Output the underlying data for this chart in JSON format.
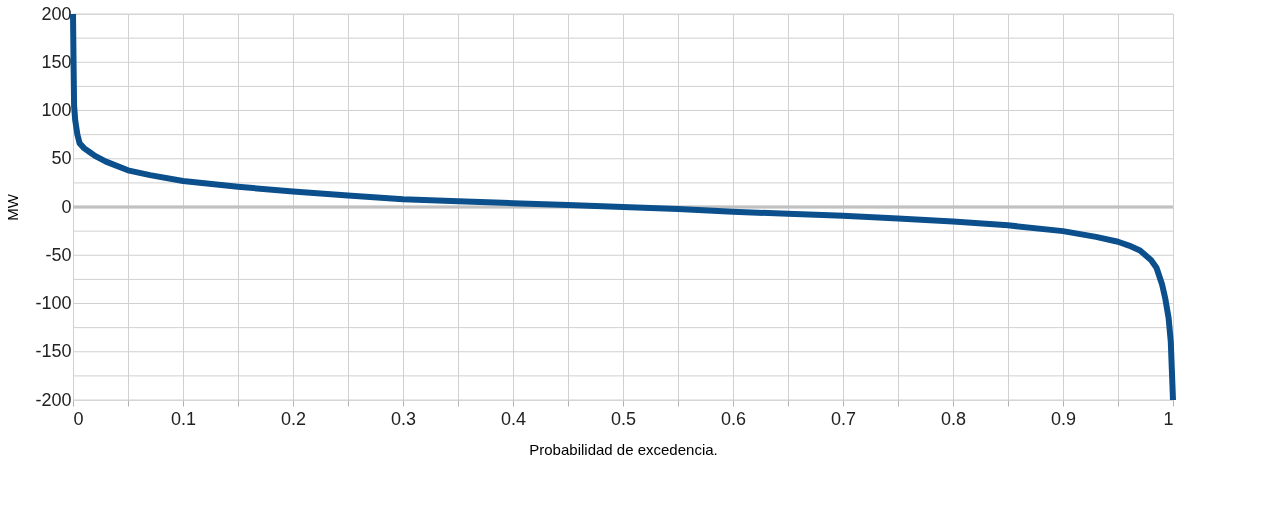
{
  "chart_data": {
    "type": "line",
    "xlabel": "Probabilidad de excedencia.",
    "ylabel": "MW",
    "xlim": [
      0,
      1
    ],
    "ylim": [
      -200,
      200
    ],
    "xticks": [
      0,
      {
        "value": 0.05,
        "label": null
      },
      0.1,
      {
        "value": 0.15,
        "label": null
      },
      0.2,
      {
        "value": 0.25,
        "label": null
      },
      0.3,
      {
        "value": 0.35,
        "label": null
      },
      0.4,
      {
        "value": 0.45,
        "label": null
      },
      0.5,
      {
        "value": 0.55,
        "label": null
      },
      0.6,
      {
        "value": 0.65,
        "label": null
      },
      0.7,
      {
        "value": 0.75,
        "label": null
      },
      0.8,
      {
        "value": 0.85,
        "label": null
      },
      0.9,
      {
        "value": 0.95,
        "label": null
      },
      1
    ],
    "yticks": [
      -200,
      {
        "value": -175,
        "label": null
      },
      -150,
      {
        "value": -125,
        "label": null
      },
      -100,
      {
        "value": -75,
        "label": null
      },
      -50,
      {
        "value": -25,
        "label": null
      },
      0,
      {
        "value": 25,
        "label": null
      },
      50,
      {
        "value": 75,
        "label": null
      },
      100,
      {
        "value": 125,
        "label": null
      },
      150,
      {
        "value": 175,
        "label": null
      },
      200
    ],
    "grid": true,
    "marker": "none",
    "line_style": "solid",
    "ref_lines": [
      {
        "axis": "y",
        "value": 0,
        "color": "#b3b3b3"
      }
    ],
    "series": [
      {
        "color": "#0b4f8c",
        "x": [
          0,
          0.0005,
          0.001,
          0.002,
          0.004,
          0.006,
          0.01,
          0.015,
          0.02,
          0.03,
          0.05,
          0.07,
          0.1,
          0.15,
          0.2,
          0.25,
          0.3,
          0.35,
          0.4,
          0.45,
          0.5,
          0.55,
          0.6,
          0.65,
          0.7,
          0.75,
          0.8,
          0.85,
          0.9,
          0.93,
          0.95,
          0.96,
          0.97,
          0.98,
          0.985,
          0.99,
          0.993,
          0.996,
          0.998,
          0.999,
          1
        ],
        "values": [
          200,
          150,
          105,
          90,
          75,
          66,
          61,
          57,
          53,
          47,
          38,
          33,
          27,
          21,
          16,
          12,
          8,
          6,
          4,
          2,
          0,
          -2,
          -5,
          -7,
          -9,
          -12,
          -15,
          -19,
          -25,
          -31,
          -36,
          -40,
          -45,
          -55,
          -63,
          -80,
          -95,
          -115,
          -140,
          -170,
          -200
        ]
      }
    ]
  }
}
